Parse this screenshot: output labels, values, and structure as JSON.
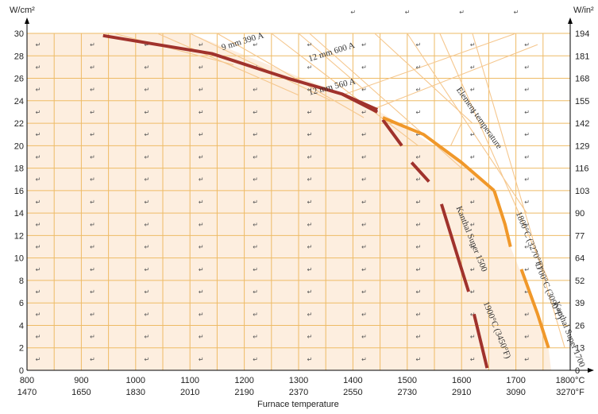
{
  "chart_data": {
    "type": "line",
    "units": {
      "left": "W/cm²",
      "right": "W/in²"
    },
    "xlabel": "Furnace temperature",
    "x_ticks_c": [
      "800",
      "900",
      "1000",
      "1100",
      "1200",
      "1300",
      "1400",
      "1500",
      "1600",
      "1700",
      "1800°C"
    ],
    "x_ticks_f": [
      "1470",
      "1650",
      "1830",
      "2010",
      "2190",
      "2370",
      "2550",
      "2730",
      "2910",
      "3090",
      "3270°F"
    ],
    "xlim_c": [
      800,
      1800
    ],
    "ylim_left": [
      0,
      30
    ],
    "y_ticks_left": [
      "0",
      "2",
      "4",
      "6",
      "8",
      "10",
      "12",
      "14",
      "16",
      "18",
      "20",
      "22",
      "24",
      "26",
      "28",
      "30"
    ],
    "y_ticks_right": [
      "0",
      "13",
      "26",
      "39",
      "52",
      "64",
      "77",
      "90",
      "103",
      "116",
      "129",
      "142",
      "155",
      "168",
      "181",
      "194"
    ],
    "colors": {
      "dark_series": "#a0322c",
      "orange_series": "#f0982a",
      "grid": "#eebb66",
      "shade": "#fdeedf",
      "guide": "#f5c78e"
    },
    "series": [
      {
        "name": "",
        "color": "#a0322c",
        "points": [
          [
            940,
            29.8
          ],
          [
            1140,
            28.2
          ],
          [
            1280,
            26
          ],
          [
            1380,
            24.6
          ],
          [
            1445,
            23
          ]
        ]
      },
      {
        "name": "",
        "color": "#a0322c",
        "points": [
          [
            1380,
            24.6
          ],
          [
            1445,
            23.2
          ]
        ]
      },
      {
        "name": "",
        "color": "#a0322c",
        "points": [
          [
            1455,
            22.3
          ],
          [
            1490,
            20
          ]
        ]
      },
      {
        "name": "",
        "color": "#a0322c",
        "points": [
          [
            1508,
            18.5
          ],
          [
            1540,
            16.8
          ]
        ]
      },
      {
        "name": "",
        "color": "#a0322c",
        "points": [
          [
            1563,
            14.8
          ],
          [
            1600,
            9
          ],
          [
            1613,
            7
          ]
        ]
      },
      {
        "name": "",
        "color": "#a0322c",
        "points": [
          [
            1623,
            5
          ],
          [
            1647,
            0.2
          ]
        ]
      },
      {
        "name": "",
        "color": "#f0982a",
        "points": [
          [
            1455,
            22.5
          ],
          [
            1530,
            21
          ],
          [
            1600,
            18.5
          ],
          [
            1660,
            16
          ]
        ]
      },
      {
        "name": "",
        "color": "#f0982a",
        "points": [
          [
            1660,
            16
          ],
          [
            1680,
            13
          ],
          [
            1690,
            11
          ]
        ]
      },
      {
        "name": "",
        "color": "#f0982a",
        "points": [
          [
            1710,
            9
          ],
          [
            1740,
            5
          ],
          [
            1760,
            2
          ]
        ]
      }
    ],
    "annotations": [
      "9 mm  390 A",
      "12 mm  600 A",
      "12 mm  560 A",
      "Element temperature",
      "Kanthal Super 1500",
      "1800°C (3270°F)",
      "1700°C (3090°F)",
      "Kanthal Super 1700",
      "1900°C (3450°F)"
    ],
    "grid": true,
    "paragraph_mark": "↵"
  }
}
